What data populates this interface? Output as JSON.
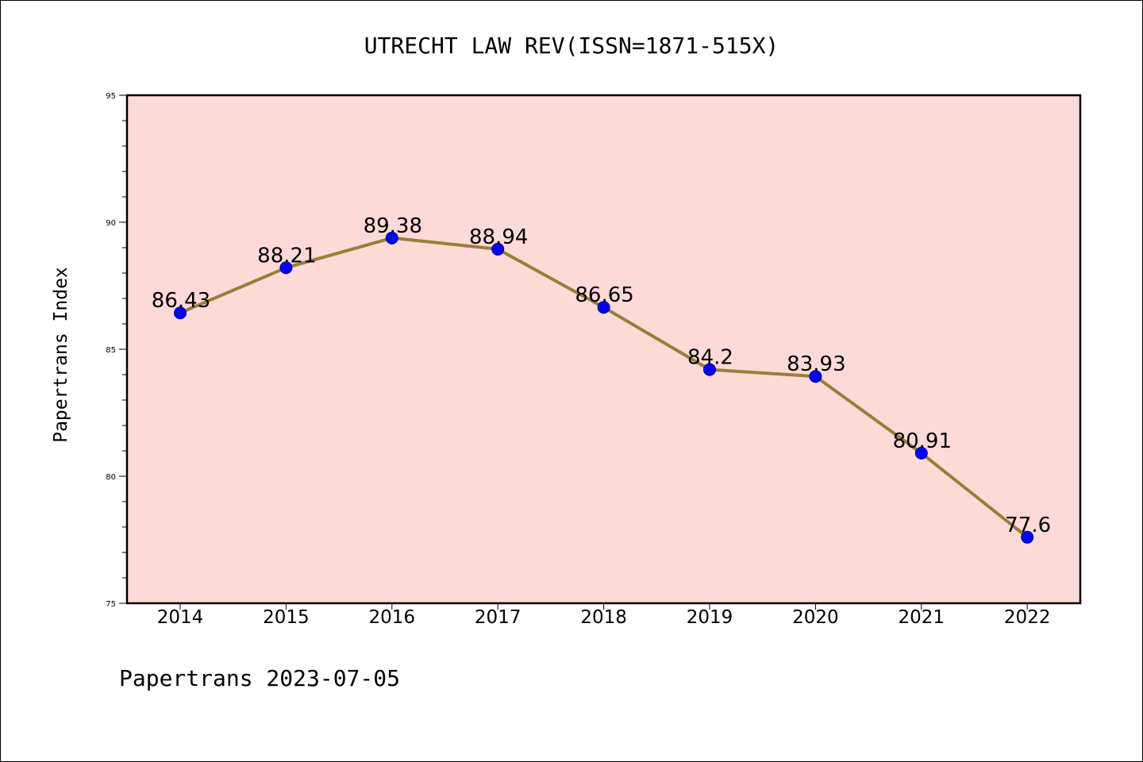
{
  "chart_data": {
    "type": "line",
    "title": "UTRECHT LAW REV(ISSN=1871-515X)",
    "ylabel": "Papertrans Index",
    "xlabel": "",
    "footer": "Papertrans 2023-07-05",
    "x": [
      "2014",
      "2015",
      "2016",
      "2017",
      "2018",
      "2019",
      "2020",
      "2021",
      "2022"
    ],
    "values": [
      86.43,
      88.21,
      89.38,
      88.94,
      86.65,
      84.2,
      83.93,
      80.91,
      77.6
    ],
    "data_labels": [
      "86.43",
      "88.21",
      "89.38",
      "88.94",
      "86.65",
      "84.2",
      "83.93",
      "80.91",
      "77.6"
    ],
    "ylim": [
      75,
      95
    ],
    "yticks": [
      "75",
      "80",
      "85",
      "90",
      "95"
    ],
    "y_minor_step": 1,
    "grid": false,
    "colors": {
      "plot_background": "#FDDAD7",
      "line": "#9A7E3A",
      "marker": "#0000FF",
      "marker_edge": "#000080"
    }
  }
}
